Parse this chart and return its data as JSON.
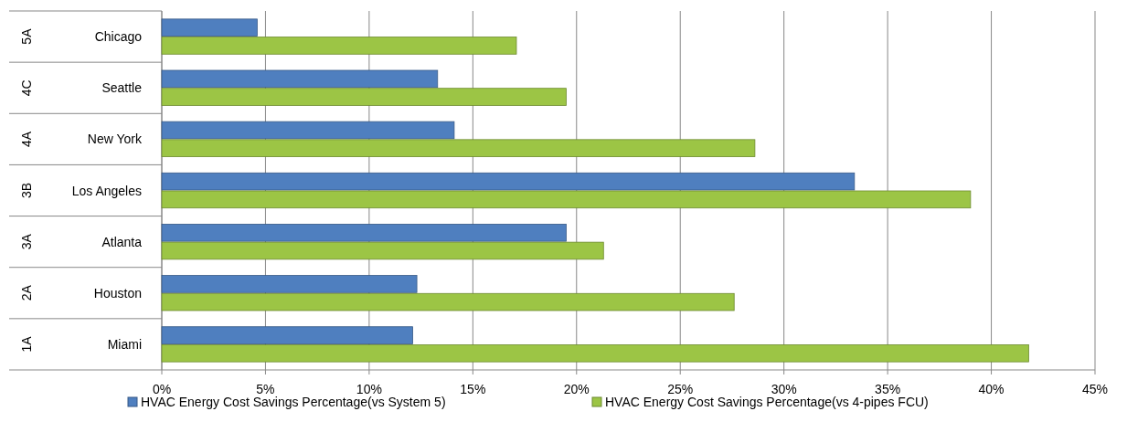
{
  "chart_data": {
    "type": "bar",
    "orientation": "horizontal",
    "categories": [
      "Chicago",
      "Seattle",
      "New York",
      "Los Angeles",
      "Atlanta",
      "Houston",
      "Miami"
    ],
    "series": [
      {
        "name": "HVAC Energy Cost Savings Percentage(vs System 5)",
        "color": "#4f7fbf",
        "values": [
          4.6,
          13.3,
          14.1,
          33.4,
          19.5,
          12.3,
          12.1
        ]
      },
      {
        "name": "HVAC Energy Cost Savings Percentage(vs 4-pipes FCU)",
        "color": "#9cc545",
        "values": [
          17.1,
          19.5,
          28.6,
          39.0,
          21.3,
          27.6,
          41.8
        ]
      }
    ],
    "xlim": [
      0,
      45
    ],
    "xticks": [
      {
        "value": 0,
        "label": "0%"
      },
      {
        "value": 5,
        "label": "5%"
      },
      {
        "value": 10,
        "label": "10%"
      },
      {
        "value": 15,
        "label": "15%"
      },
      {
        "value": 20,
        "label": "20%"
      },
      {
        "value": 25,
        "label": "25%"
      },
      {
        "value": 30,
        "label": "30%"
      },
      {
        "value": 35,
        "label": "35%"
      },
      {
        "value": 40,
        "label": "40%"
      },
      {
        "value": 45,
        "label": "45%"
      }
    ],
    "grid": "x",
    "legend": "bottom",
    "annotations": [
      "5A",
      "4C",
      "4A",
      "3B",
      "3A",
      "2A",
      "1A"
    ]
  }
}
